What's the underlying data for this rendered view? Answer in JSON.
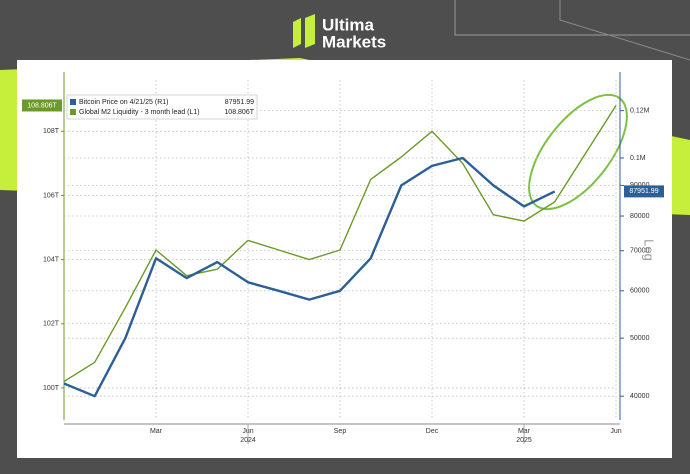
{
  "brand": {
    "line1": "Ultima",
    "line2": "Markets"
  },
  "chart_data": {
    "type": "line",
    "x": [
      "2023-12",
      "2024-01",
      "2024-02",
      "2024-03",
      "2024-04",
      "2024-05",
      "2024-06",
      "2024-07",
      "2024-08",
      "2024-09",
      "2024-10",
      "2024-11",
      "2024-12",
      "2025-01",
      "2025-02",
      "2025-03",
      "2025-04",
      "2025-05",
      "2025-06"
    ],
    "xlim": [
      "2023-12",
      "2025-06"
    ],
    "xticks": [
      {
        "value": "2024-03",
        "label": "Mar"
      },
      {
        "value": "2024-06",
        "label": "Jun"
      },
      {
        "value": "2024-09",
        "label": "Sep"
      },
      {
        "value": "2024-12",
        "label": "Dec"
      },
      {
        "value": "2025-03",
        "label": "Mar"
      },
      {
        "value": "2025-06",
        "label": "Jun"
      }
    ],
    "xyears": [
      {
        "value": "2024-06",
        "label": "2024"
      },
      {
        "value": "2025-03",
        "label": "2025"
      }
    ],
    "ylim": [
      99,
      109.6
    ],
    "yticks": [
      {
        "value": 100,
        "label": "100T"
      },
      {
        "value": 102,
        "label": "102T"
      },
      {
        "value": 104,
        "label": "104T"
      },
      {
        "value": 106,
        "label": "106T"
      },
      {
        "value": 108,
        "label": "108T"
      }
    ],
    "y2lim": [
      36500,
      135000
    ],
    "y2log": true,
    "y2_scale_label": "Log",
    "y2ticks": [
      40000,
      50000,
      60000,
      70000,
      80000,
      90000,
      {
        "value": 100000,
        "label": "0.1M"
      },
      {
        "value": 120000,
        "label": "0.12M"
      }
    ],
    "grid": true,
    "legend": "top-left",
    "series": [
      {
        "name": "Bitcoin Price on 4/21/25 (R1)",
        "color": "#2c5f98",
        "axis": "y2",
        "values": [
          42000,
          40000,
          50000,
          68000,
          63000,
          67000,
          62000,
          60000,
          58000,
          60000,
          68000,
          90000,
          97000,
          100000,
          90000,
          83000,
          87951.99,
          null,
          null
        ]
      },
      {
        "name": "Global M2 Liquidity - 3 month lead (L1)",
        "color": "#6b9a26",
        "values": [
          100.2,
          100.8,
          102.5,
          104.3,
          103.5,
          103.7,
          104.6,
          104.3,
          104.0,
          104.3,
          106.5,
          107.2,
          108.0,
          107.0,
          105.4,
          105.2,
          105.8,
          107.3,
          108.806
        ],
        "value_labels": [
          null,
          null,
          null,
          null,
          null,
          null,
          null,
          null,
          null,
          null,
          null,
          null,
          null,
          null,
          null,
          null,
          null,
          null,
          "108.806T"
        ]
      }
    ]
  }
}
